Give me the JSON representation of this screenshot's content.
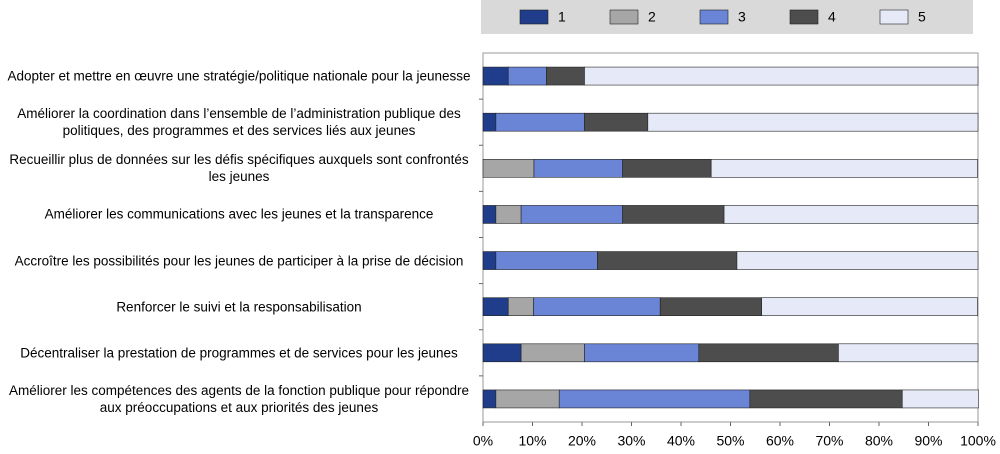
{
  "chart_data": {
    "type": "stacked-bar-horizontal",
    "categories": [
      "Adopter et mettre en œuvre une stratégie/politique nationale pour la jeunesse",
      "Améliorer la coordination dans l’ensemble de l’administration publique des politiques, des programmes et des services liés aux jeunes",
      "Recueillir plus de données sur les défis spécifiques auxquels sont confrontés les jeunes",
      "Améliorer les communications avec les jeunes et la transparence",
      "Accroître les possibilités pour les jeunes de participer à la prise de décision",
      "Renforcer le suivi et la responsabilisation",
      "Décentraliser la prestation de programmes et de services pour les jeunes",
      "Améliorer les compétences des agents de la fonction publique pour répondre aux préoccupations et aux priorités des jeunes"
    ],
    "series": [
      {
        "name": "1",
        "color": "#1f3d8a",
        "values": [
          5.1,
          2.6,
          0,
          2.6,
          2.6,
          5.1,
          7.7,
          2.6
        ]
      },
      {
        "name": "2",
        "color": "#a6a6a6",
        "values": [
          0,
          0,
          10.3,
          5.1,
          0,
          5.1,
          12.8,
          12.8
        ]
      },
      {
        "name": "3",
        "color": "#6a84d6",
        "values": [
          7.7,
          17.9,
          17.9,
          20.5,
          20.5,
          25.6,
          23.1,
          38.5
        ]
      },
      {
        "name": "4",
        "color": "#4d4d4d",
        "values": [
          7.7,
          12.8,
          17.9,
          20.5,
          28.2,
          20.5,
          28.2,
          30.8
        ]
      },
      {
        "name": "5",
        "color": "#e6e9f7",
        "values": [
          79.5,
          66.7,
          53.8,
          51.3,
          48.7,
          43.6,
          28.2,
          15.4
        ]
      }
    ],
    "xlim": [
      0,
      100
    ],
    "xticks": [
      {
        "value": 0,
        "label": "0%"
      },
      {
        "value": 10,
        "label": "10%"
      },
      {
        "value": 20,
        "label": "20%"
      },
      {
        "value": 30,
        "label": "30%"
      },
      {
        "value": 40,
        "label": "40%"
      },
      {
        "value": 50,
        "label": "50%"
      },
      {
        "value": 60,
        "label": "60%"
      },
      {
        "value": 70,
        "label": "70%"
      },
      {
        "value": 80,
        "label": "80%"
      },
      {
        "value": 90,
        "label": "90%"
      },
      {
        "value": 100,
        "label": "100%"
      }
    ],
    "legend": "top"
  }
}
